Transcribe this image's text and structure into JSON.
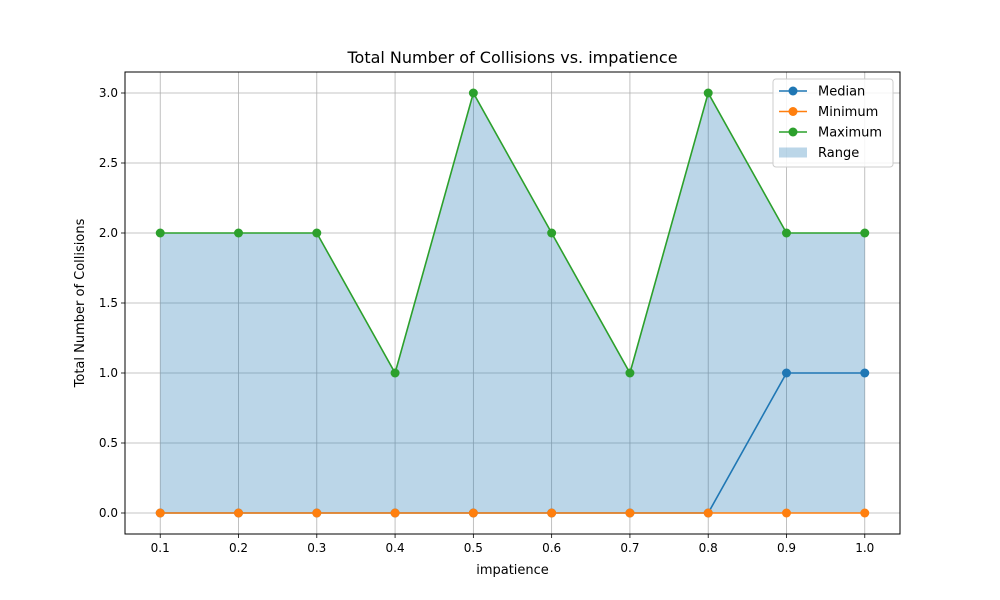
{
  "chart_data": {
    "type": "line",
    "title": "Total Number of Collisions vs. impatience",
    "xlabel": "impatience",
    "ylabel": "Total Number of Collisions",
    "x": [
      0.1,
      0.2,
      0.3,
      0.4,
      0.5,
      0.6,
      0.7,
      0.8,
      0.9,
      1.0
    ],
    "x_tick_labels": [
      "0.1",
      "0.2",
      "0.3",
      "0.4",
      "0.5",
      "0.6",
      "0.7",
      "0.8",
      "0.9",
      "1.0"
    ],
    "y_tick_values": [
      0.0,
      0.5,
      1.0,
      1.5,
      2.0,
      2.5,
      3.0
    ],
    "y_tick_labels": [
      "0.0",
      "0.5",
      "1.0",
      "1.5",
      "2.0",
      "2.5",
      "3.0"
    ],
    "xlim": [
      0.055,
      1.045
    ],
    "ylim": [
      -0.15,
      3.15
    ],
    "grid": true,
    "legend_position": "top-right",
    "series": [
      {
        "name": "Median",
        "color": "#1f77b4",
        "values": [
          0,
          0,
          0,
          0,
          0,
          0,
          0,
          0,
          1,
          1
        ]
      },
      {
        "name": "Minimum",
        "color": "#ff7f0e",
        "values": [
          0,
          0,
          0,
          0,
          0,
          0,
          0,
          0,
          0,
          0
        ]
      },
      {
        "name": "Maximum",
        "color": "#2ca02c",
        "values": [
          2,
          2,
          2,
          1,
          3,
          2,
          1,
          3,
          2,
          2
        ]
      }
    ],
    "range_band": {
      "name": "Range",
      "color": "#1f77b4",
      "opacity": 0.3,
      "lower_series": "Minimum",
      "upper_series": "Maximum"
    }
  }
}
